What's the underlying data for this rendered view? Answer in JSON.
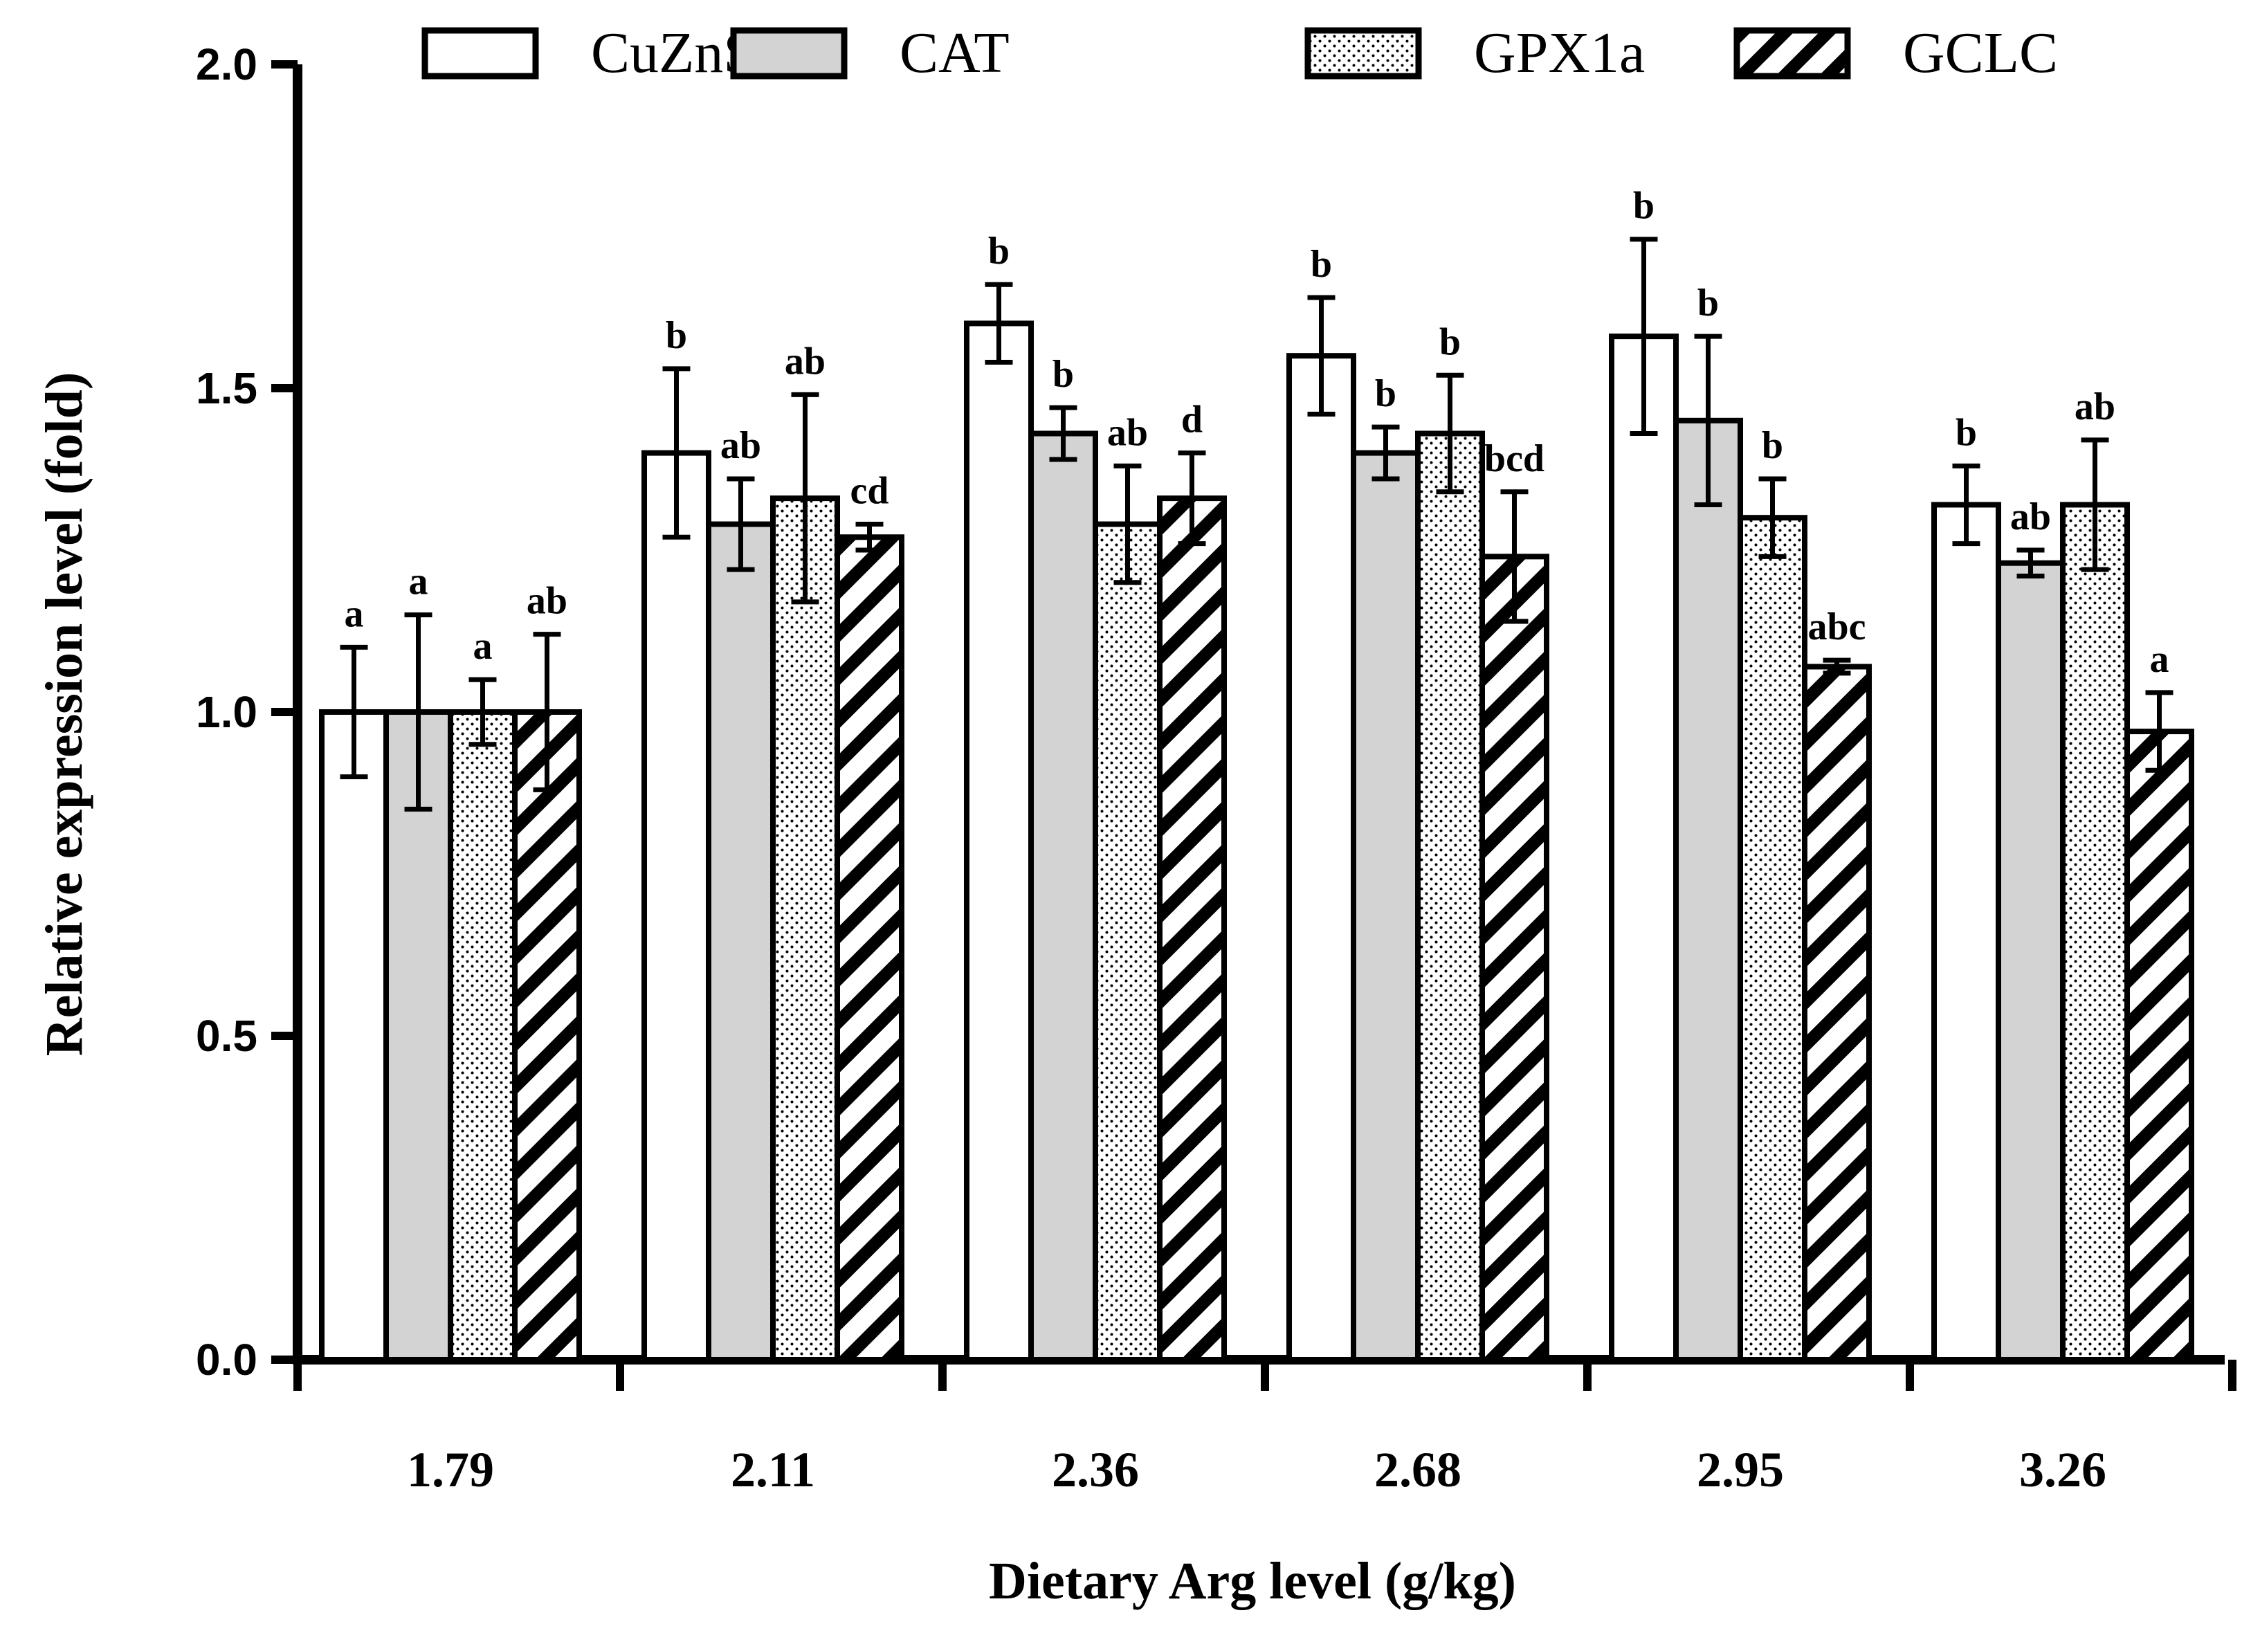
{
  "chart_data": {
    "type": "bar",
    "title": "",
    "xlabel": "Dietary Arg level (g/kg)",
    "ylabel": "Relative expression level (fold)",
    "ylim": [
      0,
      2.0
    ],
    "yticks": [
      "0.0",
      "0.5",
      "1.0",
      "1.5",
      "2.0"
    ],
    "ytick_values": [
      0,
      0.5,
      1.0,
      1.5,
      2.0
    ],
    "categories": [
      "1.79",
      "2.11",
      "2.36",
      "2.68",
      "2.95",
      "3.26"
    ],
    "legend_position": "top",
    "series": [
      {
        "name": "CuZnSOD",
        "pattern": "white",
        "values": [
          1.0,
          1.4,
          1.6,
          1.55,
          1.58,
          1.32
        ],
        "errors": [
          0.1,
          0.13,
          0.06,
          0.09,
          0.15,
          0.06
        ],
        "labels": [
          "a",
          "b",
          "b",
          "b",
          "b",
          "b"
        ]
      },
      {
        "name": "CAT",
        "pattern": "gray",
        "values": [
          1.0,
          1.29,
          1.43,
          1.4,
          1.45,
          1.23
        ],
        "errors": [
          0.15,
          0.07,
          0.04,
          0.04,
          0.13,
          0.02
        ],
        "labels": [
          "a",
          "ab",
          "b",
          "b",
          "b",
          "ab"
        ]
      },
      {
        "name": "GPX1a",
        "pattern": "dotted",
        "values": [
          1.0,
          1.33,
          1.29,
          1.43,
          1.3,
          1.32
        ],
        "errors": [
          0.05,
          0.16,
          0.09,
          0.09,
          0.06,
          0.1
        ],
        "labels": [
          "a",
          "ab",
          "ab",
          "b",
          "b",
          "ab"
        ]
      },
      {
        "name": "GCLC",
        "pattern": "hatched",
        "values": [
          1.0,
          1.27,
          1.33,
          1.24,
          1.07,
          0.97
        ],
        "errors": [
          0.12,
          0.02,
          0.07,
          0.1,
          0.01,
          0.06
        ],
        "labels": [
          "ab",
          "cd",
          "d",
          "bcd",
          "abc",
          "a"
        ]
      }
    ],
    "colors": {
      "axis": "#000000",
      "bar_stroke": "#000000",
      "white_fill": "#ffffff",
      "gray_fill": "#d3d3d3",
      "hatch": "#000000"
    }
  }
}
